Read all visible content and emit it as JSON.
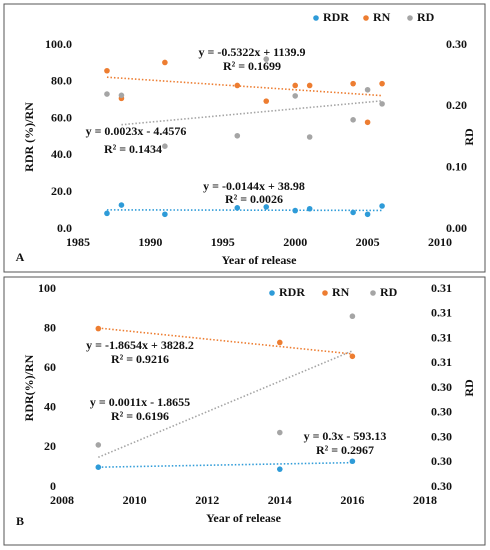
{
  "chart_data": [
    {
      "type": "scatter",
      "label": "A",
      "xlabel": "Year of release",
      "ylabel": "RDR (%)/RN",
      "y2label": "RD",
      "x": [
        1987,
        1988,
        1991,
        1996,
        1998,
        2000,
        2001,
        2004,
        2005,
        2006
      ],
      "xlim": [
        1985,
        2010
      ],
      "xticks": [
        1985,
        1990,
        1995,
        2000,
        2005,
        2010
      ],
      "ylim": [
        0,
        100
      ],
      "yticks": [
        {
          "value": 0,
          "label": "0.0"
        },
        {
          "value": 20,
          "label": "20.0"
        },
        {
          "value": 40,
          "label": "40.0"
        },
        {
          "value": 60,
          "label": "60.0"
        },
        {
          "value": 80,
          "label": "80.0"
        },
        {
          "value": 100,
          "label": "100.0"
        }
      ],
      "y2lim": [
        0,
        0.3
      ],
      "y2ticks": [
        {
          "value": 0,
          "label": "0.00"
        },
        {
          "value": 0.1,
          "label": "0.10"
        },
        {
          "value": 0.2,
          "label": "0.20"
        },
        {
          "value": 0.3,
          "label": "0.30"
        }
      ],
      "grid": false,
      "legend": "top-right",
      "series": [
        {
          "name": "RDR",
          "color": "#2e9bd8",
          "axis": "y",
          "values": [
            8.5,
            13,
            8,
            11.5,
            12,
            10,
            11,
            9,
            8,
            12.5
          ],
          "trend": {
            "x": [
              1987,
              2006
            ],
            "values": [
              10.4,
              10.1
            ]
          }
        },
        {
          "name": "RN",
          "color": "#ed7d31",
          "axis": "y",
          "values": [
            86,
            71,
            90.5,
            78,
            69.5,
            78,
            78,
            79,
            58,
            79
          ],
          "trend": {
            "x": [
              1987,
              2006
            ],
            "values": [
              82.5,
              72.5
            ]
          }
        },
        {
          "name": "RD",
          "color": "#a5a5a5",
          "axis": "y2",
          "values": [
            0.22,
            0.218,
            0.135,
            0.152,
            0.277,
            0.217,
            0.15,
            0.178,
            0.227,
            0.204
          ],
          "trend": {
            "x": [
              1988,
              2006
            ],
            "values": [
              0.17,
              0.209
            ]
          }
        }
      ],
      "annotations": [
        "y = -0.5322x + 1139.9",
        "R² = 0.1699",
        "y = 0.0023x - 4.4576",
        "R² = 0.1434",
        "y = -0.0144x + 38.98",
        "R² = 0.0026"
      ]
    },
    {
      "type": "scatter",
      "label": "B",
      "xlabel": "Year of release",
      "ylabel": "RDR(%)/RN",
      "y2label": "RD",
      "x": [
        2009,
        2014,
        2016
      ],
      "xlim": [
        2008,
        2018
      ],
      "xticks": [
        2008,
        2010,
        2012,
        2014,
        2016,
        2018
      ],
      "ylim": [
        0,
        100
      ],
      "yticks": [
        0,
        20,
        40,
        60,
        80,
        100
      ],
      "y2lim": [
        0.301,
        0.309
      ],
      "y2ticks": [
        {
          "value": 0.301,
          "label": "0.30"
        },
        {
          "value": 0.302,
          "label": "0.30"
        },
        {
          "value": 0.303,
          "label": "0.30"
        },
        {
          "value": 0.304,
          "label": "0.30"
        },
        {
          "value": 0.305,
          "label": "0.30"
        },
        {
          "value": 0.306,
          "label": "0.31"
        },
        {
          "value": 0.307,
          "label": "0.31"
        },
        {
          "value": 0.308,
          "label": "0.31"
        },
        {
          "value": 0.309,
          "label": "0.31"
        }
      ],
      "grid": false,
      "legend": "top",
      "series": [
        {
          "name": "RDR",
          "color": "#2e9bd8",
          "axis": "y",
          "values": [
            10,
            9,
            13
          ],
          "trend": {
            "x": [
              2009,
              2016
            ],
            "values": [
              10,
              12.3
            ]
          }
        },
        {
          "name": "RN",
          "color": "#ed7d31",
          "axis": "y",
          "values": [
            80,
            73,
            66
          ],
          "trend": {
            "x": [
              2009,
              2016
            ],
            "values": [
              80.3,
              67.2
            ]
          }
        },
        {
          "name": "RD",
          "color": "#a5a5a5",
          "axis": "y2",
          "values": [
            0.3027,
            0.3032,
            0.3079
          ],
          "trend": {
            "x": [
              2009,
              2016
            ],
            "values": [
              0.3022,
              0.3065
            ]
          }
        }
      ],
      "annotations": [
        "y = -1.8654x + 3828.2",
        "R² = 0.9216",
        "y = 0.0011x - 1.8655",
        "R² = 0.6196",
        "y = 0.3x - 593.13",
        "R² = 0.2967"
      ]
    }
  ]
}
